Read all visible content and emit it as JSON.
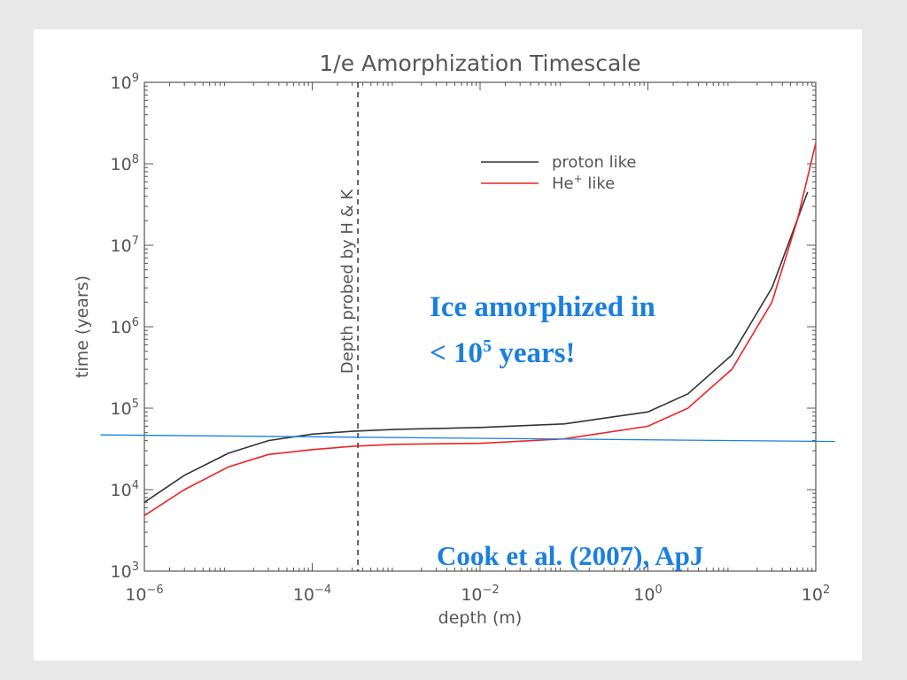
{
  "chart_data": {
    "type": "line",
    "title": "1/e Amorphization Timescale",
    "xlabel": "depth (m)",
    "ylabel": "time (years)",
    "x_scale": "log",
    "y_scale": "log",
    "xlim": [
      1e-06,
      100
    ],
    "ylim": [
      1000,
      1000000000
    ],
    "x_ticks": [
      {
        "value": 1e-06,
        "base": "10",
        "exp": "−6"
      },
      {
        "value": 0.0001,
        "base": "10",
        "exp": "−4"
      },
      {
        "value": 0.01,
        "base": "10",
        "exp": "−2"
      },
      {
        "value": 1,
        "base": "10",
        "exp": "0"
      },
      {
        "value": 100,
        "base": "10",
        "exp": "2"
      }
    ],
    "y_ticks": [
      {
        "value": 1000,
        "base": "10",
        "exp": "3"
      },
      {
        "value": 10000,
        "base": "10",
        "exp": "4"
      },
      {
        "value": 100000,
        "base": "10",
        "exp": "5"
      },
      {
        "value": 1000000,
        "base": "10",
        "exp": "6"
      },
      {
        "value": 10000000,
        "base": "10",
        "exp": "7"
      },
      {
        "value": 100000000,
        "base": "10",
        "exp": "8"
      },
      {
        "value": 1000000000,
        "base": "10",
        "exp": "9"
      }
    ],
    "legend_position": "top-right",
    "series": [
      {
        "name": "proton like",
        "legend_base": "proton like",
        "legend_sup": "",
        "color": "#333333",
        "points": [
          [
            1e-06,
            7000
          ],
          [
            3e-06,
            15000
          ],
          [
            1e-05,
            28000
          ],
          [
            3e-05,
            40000
          ],
          [
            0.0001,
            48000
          ],
          [
            0.0003,
            52000
          ],
          [
            0.001,
            55000
          ],
          [
            0.01,
            58000
          ],
          [
            0.1,
            64000
          ],
          [
            1,
            90000
          ],
          [
            3,
            150000
          ],
          [
            10,
            450000
          ],
          [
            30,
            3000000
          ],
          [
            80,
            45000000
          ]
        ]
      },
      {
        "name": "He+ like",
        "legend_base": "He",
        "legend_sup": "+",
        "legend_suffix": " like",
        "color": "#ee2222",
        "points": [
          [
            1e-06,
            4800
          ],
          [
            3e-06,
            10000
          ],
          [
            1e-05,
            19000
          ],
          [
            3e-05,
            27000
          ],
          [
            0.0001,
            31000
          ],
          [
            0.0003,
            34000
          ],
          [
            0.001,
            36000
          ],
          [
            0.01,
            37000
          ],
          [
            0.1,
            42000
          ],
          [
            1,
            60000
          ],
          [
            3,
            100000
          ],
          [
            10,
            300000
          ],
          [
            30,
            2000000
          ],
          [
            60,
            20000000
          ],
          [
            100,
            180000000
          ]
        ]
      }
    ],
    "reference_vline": {
      "x": 0.00035,
      "label": "Depth probed by H & K",
      "color": "#000000"
    },
    "overlay_line": {
      "x_start": 3e-07,
      "y_start": 47000,
      "x_end": 170,
      "y_end": 39000,
      "color": "#1a7fe0"
    }
  },
  "annotations": {
    "ice_line1": "Ice amorphized in",
    "ice_line2_prefix": "< 10",
    "ice_line2_sup": "5",
    "ice_line2_suffix": " years!",
    "citation": "Cook et al. (2007), ApJ",
    "color": "#1a7fe0"
  }
}
